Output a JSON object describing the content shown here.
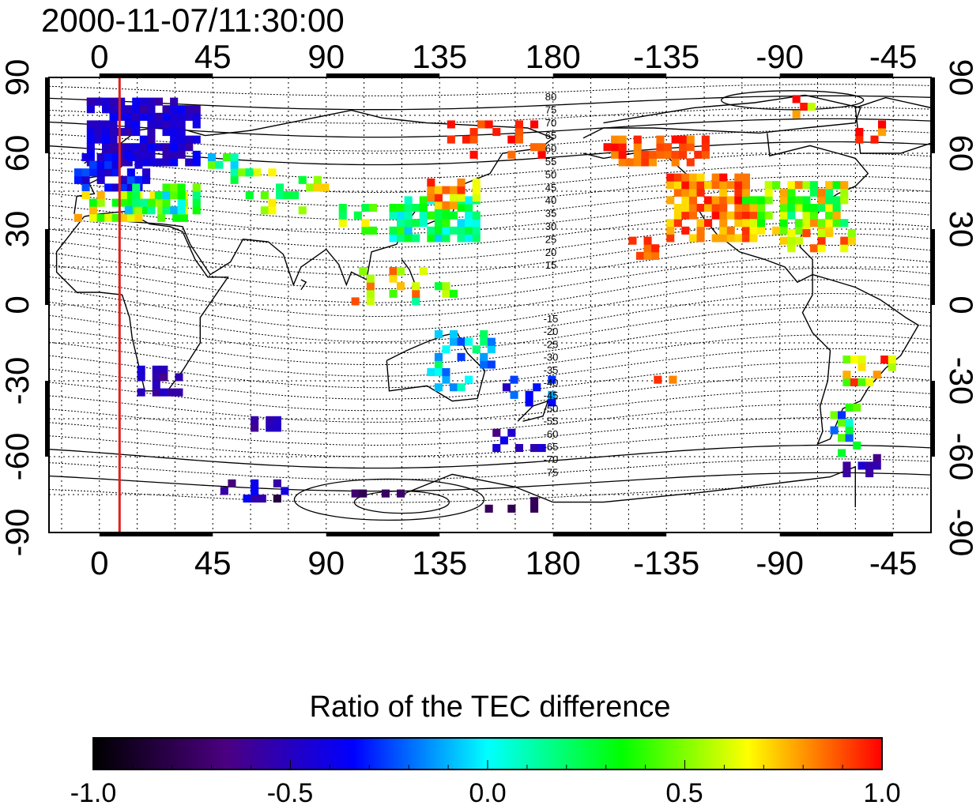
{
  "timestamp": "2000-11-07/11:30:00",
  "map": {
    "x_tick_labels": [
      "0",
      "45",
      "90",
      "135",
      "180",
      "-135",
      "-90",
      "-45"
    ],
    "y_tick_labels_left": [
      "90",
      "60",
      "30",
      "0",
      "-30",
      "-60",
      "-90"
    ],
    "y_tick_labels_right": [
      "90",
      "60",
      "30",
      "0",
      "-30",
      "-60",
      "-90"
    ],
    "marker_longitude": 8,
    "marker_color": "#e0201b",
    "contour_labels_north": [
      "80",
      "75",
      "70",
      "65",
      "60",
      "55",
      "50",
      "45",
      "40",
      "35",
      "30",
      "25",
      "20",
      "15"
    ],
    "contour_labels_south": [
      "-15",
      "-20",
      "-25",
      "-30",
      "-35",
      "-40",
      "-45",
      "-50",
      "-55",
      "-60",
      "-65",
      "-70",
      "-75"
    ],
    "grid": "dotted",
    "lon_range": [
      -20,
      330
    ],
    "lat_range": [
      -90,
      90
    ]
  },
  "colorbar": {
    "title": "Ratio of the TEC difference",
    "range": [
      -1.0,
      1.0
    ],
    "tick_labels": [
      "-1.0",
      "-0.5",
      "0.0",
      "0.5",
      "1.0"
    ],
    "colors": [
      "#000000",
      "#4b0082",
      "#0000ff",
      "#00ffff",
      "#00ff00",
      "#ffff00",
      "#ff0000"
    ]
  }
}
